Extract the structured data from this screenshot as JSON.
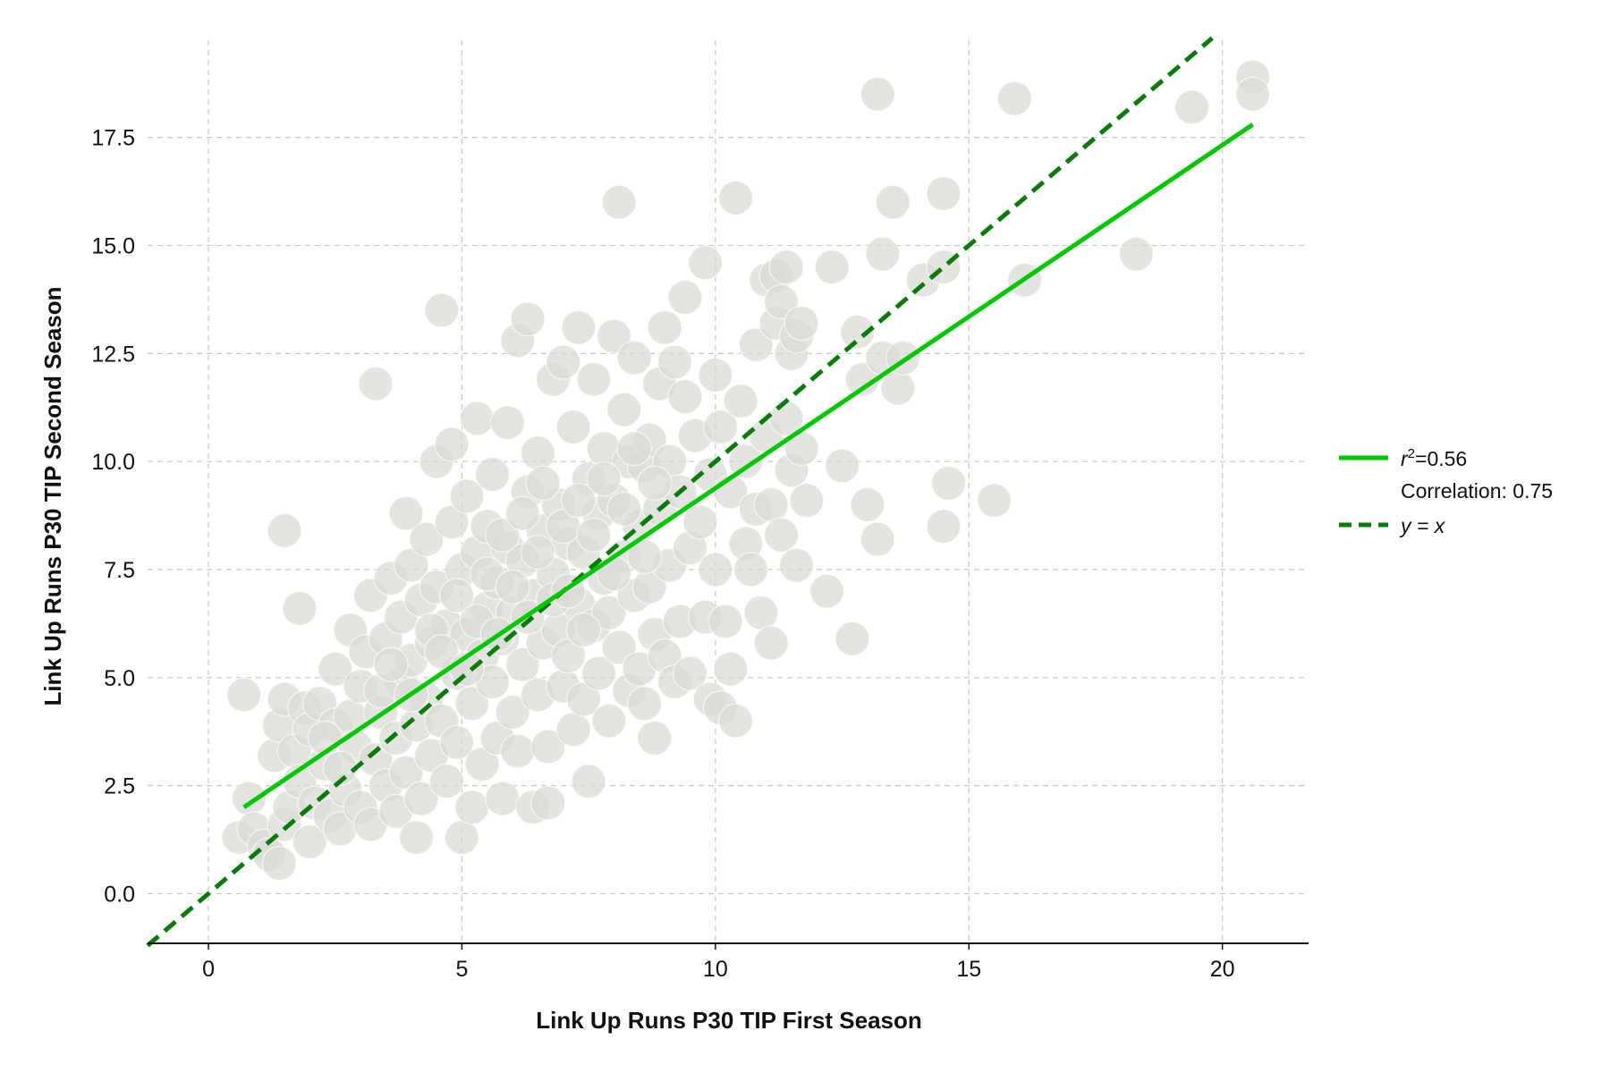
{
  "chart_data": {
    "type": "scatter",
    "title": "",
    "xlabel": "Link Up Runs P30 TIP First Season",
    "ylabel": "Link Up Runs P30 TIP Second Season",
    "xlim": [
      -1.2,
      21.7
    ],
    "ylim": [
      -1.15,
      19.75
    ],
    "xticks": [
      0,
      5,
      10,
      15,
      20
    ],
    "yticks": [
      0.0,
      2.5,
      5.0,
      7.5,
      10.0,
      12.5,
      15.0,
      17.5
    ],
    "xtick_labels": [
      "0",
      "5",
      "10",
      "15",
      "20"
    ],
    "ytick_labels": [
      "0.0",
      "2.5",
      "5.0",
      "7.5",
      "10.0",
      "12.5",
      "15.0",
      "17.5"
    ],
    "grid": true,
    "legend_position": "right",
    "colors": {
      "points": "#d9d9d6",
      "regression": "#00c800",
      "identity": "#0a7a0a"
    },
    "regression": {
      "x": [
        0.7,
        20.6
      ],
      "y": [
        2.0,
        17.8
      ],
      "r2": "0.56",
      "correlation": "0.75"
    },
    "identity": {
      "x": [
        -1.2,
        19.8
      ],
      "y": [
        -1.2,
        19.8
      ]
    },
    "legend": {
      "regression_label": "=0.56",
      "regression_symbol": "r",
      "regression_superscript": "2",
      "correlation_label": "Correlation: 0.75",
      "identity_label": "y = x"
    },
    "series": [
      {
        "values": [
          [
            0.7,
            4.6
          ],
          [
            0.8,
            2.2
          ],
          [
            0.6,
            1.3
          ],
          [
            0.9,
            1.5
          ],
          [
            1.1,
            1.1
          ],
          [
            1.2,
            0.9
          ],
          [
            1.4,
            0.7
          ],
          [
            1.5,
            1.6
          ],
          [
            1.5,
            8.4
          ],
          [
            1.8,
            6.6
          ],
          [
            1.3,
            3.2
          ],
          [
            1.4,
            3.9
          ],
          [
            1.5,
            4.5
          ],
          [
            1.6,
            2.0
          ],
          [
            1.7,
            3.3
          ],
          [
            1.8,
            2.6
          ],
          [
            1.9,
            4.3
          ],
          [
            2.0,
            1.2
          ],
          [
            2.0,
            3.8
          ],
          [
            2.1,
            2.1
          ],
          [
            2.2,
            4.4
          ],
          [
            2.3,
            3.0
          ],
          [
            2.4,
            1.8
          ],
          [
            2.5,
            3.9
          ],
          [
            2.5,
            5.2
          ],
          [
            2.6,
            1.5
          ],
          [
            2.7,
            2.4
          ],
          [
            2.8,
            4.1
          ],
          [
            2.8,
            6.1
          ],
          [
            2.9,
            3.4
          ],
          [
            3.0,
            2.0
          ],
          [
            3.0,
            4.8
          ],
          [
            3.1,
            5.6
          ],
          [
            3.2,
            1.6
          ],
          [
            3.2,
            6.9
          ],
          [
            3.3,
            3.1
          ],
          [
            3.3,
            11.8
          ],
          [
            3.4,
            4.2
          ],
          [
            3.5,
            2.5
          ],
          [
            3.5,
            5.9
          ],
          [
            3.6,
            7.3
          ],
          [
            3.7,
            3.6
          ],
          [
            3.7,
            1.9
          ],
          [
            3.8,
            4.9
          ],
          [
            3.8,
            6.4
          ],
          [
            3.9,
            8.8
          ],
          [
            3.9,
            2.8
          ],
          [
            4.0,
            5.4
          ],
          [
            4.0,
            7.6
          ],
          [
            4.1,
            1.3
          ],
          [
            4.1,
            3.9
          ],
          [
            4.2,
            6.8
          ],
          [
            4.2,
            2.2
          ],
          [
            4.3,
            4.5
          ],
          [
            4.3,
            8.2
          ],
          [
            4.4,
            5.8
          ],
          [
            4.4,
            3.2
          ],
          [
            4.5,
            7.1
          ],
          [
            4.5,
            10.0
          ],
          [
            4.6,
            4.0
          ],
          [
            4.6,
            13.5
          ],
          [
            4.7,
            6.2
          ],
          [
            4.7,
            2.6
          ],
          [
            4.8,
            8.6
          ],
          [
            4.8,
            10.4
          ],
          [
            4.9,
            5.1
          ],
          [
            4.9,
            3.5
          ],
          [
            5.0,
            7.5
          ],
          [
            5.0,
            1.3
          ],
          [
            5.1,
            6.0
          ],
          [
            5.1,
            9.2
          ],
          [
            5.2,
            4.4
          ],
          [
            5.2,
            2.0
          ],
          [
            5.3,
            11.0
          ],
          [
            5.3,
            7.9
          ],
          [
            5.4,
            5.5
          ],
          [
            5.4,
            3.0
          ],
          [
            5.5,
            8.5
          ],
          [
            5.5,
            6.6
          ],
          [
            5.6,
            4.9
          ],
          [
            5.6,
            9.7
          ],
          [
            5.7,
            3.6
          ],
          [
            5.7,
            7.2
          ],
          [
            5.8,
            5.9
          ],
          [
            5.8,
            2.2
          ],
          [
            5.9,
            10.9
          ],
          [
            5.9,
            8.0
          ],
          [
            6.0,
            4.2
          ],
          [
            6.0,
            6.5
          ],
          [
            6.1,
            12.8
          ],
          [
            6.1,
            3.3
          ],
          [
            6.2,
            7.7
          ],
          [
            6.2,
            5.3
          ],
          [
            6.3,
            9.3
          ],
          [
            6.3,
            13.3
          ],
          [
            6.4,
            2.0
          ],
          [
            6.4,
            6.9
          ],
          [
            6.5,
            4.6
          ],
          [
            6.5,
            10.2
          ],
          [
            6.6,
            8.4
          ],
          [
            6.6,
            5.8
          ],
          [
            6.7,
            3.4
          ],
          [
            6.7,
            2.1
          ],
          [
            6.8,
            7.4
          ],
          [
            6.8,
            11.9
          ],
          [
            6.9,
            6.1
          ],
          [
            6.9,
            9.0
          ],
          [
            7.0,
            4.8
          ],
          [
            7.0,
            12.3
          ],
          [
            7.1,
            8.1
          ],
          [
            7.1,
            5.5
          ],
          [
            7.2,
            3.8
          ],
          [
            7.2,
            10.8
          ],
          [
            7.3,
            6.7
          ],
          [
            7.3,
            13.1
          ],
          [
            7.4,
            7.9
          ],
          [
            7.4,
            4.5
          ],
          [
            7.5,
            9.6
          ],
          [
            7.5,
            2.6
          ],
          [
            7.6,
            6.2
          ],
          [
            7.6,
            11.9
          ],
          [
            7.7,
            8.8
          ],
          [
            7.7,
            5.1
          ],
          [
            7.8,
            10.3
          ],
          [
            7.8,
            7.3
          ],
          [
            7.9,
            4.0
          ],
          [
            7.9,
            6.5
          ],
          [
            8.0,
            9.1
          ],
          [
            8.0,
            12.9
          ],
          [
            8.1,
            5.7
          ],
          [
            8.1,
            16.0
          ],
          [
            8.2,
            7.8
          ],
          [
            8.2,
            11.2
          ],
          [
            8.3,
            4.7
          ],
          [
            8.3,
            10.0
          ],
          [
            8.4,
            6.9
          ],
          [
            8.4,
            12.4
          ],
          [
            8.5,
            8.5
          ],
          [
            8.5,
            5.2
          ],
          [
            8.6,
            9.9
          ],
          [
            8.6,
            4.4
          ],
          [
            8.7,
            7.1
          ],
          [
            8.7,
            10.5
          ],
          [
            8.8,
            3.6
          ],
          [
            8.8,
            6.0
          ],
          [
            8.9,
            8.9
          ],
          [
            8.9,
            11.8
          ],
          [
            9.0,
            13.1
          ],
          [
            9.0,
            5.5
          ],
          [
            9.1,
            10.0
          ],
          [
            9.1,
            7.6
          ],
          [
            9.2,
            12.3
          ],
          [
            9.2,
            4.9
          ],
          [
            9.3,
            9.3
          ],
          [
            9.3,
            6.3
          ],
          [
            9.4,
            13.8
          ],
          [
            9.4,
            11.5
          ],
          [
            9.5,
            8.0
          ],
          [
            9.5,
            5.1
          ],
          [
            9.6,
            10.6
          ],
          [
            9.7,
            8.6
          ],
          [
            9.8,
            14.6
          ],
          [
            9.8,
            6.4
          ],
          [
            9.9,
            4.5
          ],
          [
            9.9,
            9.7
          ],
          [
            10.0,
            12.0
          ],
          [
            10.0,
            7.5
          ],
          [
            10.1,
            4.3
          ],
          [
            10.1,
            10.8
          ],
          [
            10.2,
            6.3
          ],
          [
            10.3,
            5.2
          ],
          [
            10.3,
            9.3
          ],
          [
            10.4,
            16.1
          ],
          [
            10.4,
            4.0
          ],
          [
            10.5,
            11.4
          ],
          [
            10.6,
            8.1
          ],
          [
            10.6,
            10.0
          ],
          [
            10.7,
            7.5
          ],
          [
            10.8,
            12.7
          ],
          [
            10.8,
            8.9
          ],
          [
            10.9,
            6.5
          ],
          [
            11.0,
            10.6
          ],
          [
            11.0,
            14.2
          ],
          [
            11.1,
            9.0
          ],
          [
            11.1,
            5.8
          ],
          [
            11.2,
            13.2
          ],
          [
            11.2,
            14.3
          ],
          [
            11.3,
            8.3
          ],
          [
            11.3,
            13.7
          ],
          [
            11.4,
            14.5
          ],
          [
            11.4,
            11.0
          ],
          [
            11.5,
            12.5
          ],
          [
            11.5,
            9.8
          ],
          [
            11.6,
            12.9
          ],
          [
            11.6,
            7.6
          ],
          [
            11.7,
            13.2
          ],
          [
            11.7,
            10.3
          ],
          [
            11.8,
            9.1
          ],
          [
            12.3,
            14.5
          ],
          [
            12.2,
            7.0
          ],
          [
            12.5,
            9.9
          ],
          [
            12.7,
            5.9
          ],
          [
            12.8,
            13.0
          ],
          [
            12.9,
            11.9
          ],
          [
            13.0,
            9.0
          ],
          [
            13.2,
            18.5
          ],
          [
            13.2,
            8.2
          ],
          [
            13.3,
            14.8
          ],
          [
            13.3,
            12.4
          ],
          [
            13.5,
            16.0
          ],
          [
            13.6,
            11.7
          ],
          [
            13.7,
            12.4
          ],
          [
            14.1,
            14.2
          ],
          [
            14.5,
            16.2
          ],
          [
            14.5,
            14.5
          ],
          [
            14.6,
            9.5
          ],
          [
            14.5,
            8.5
          ],
          [
            15.5,
            9.1
          ],
          [
            15.9,
            18.4
          ],
          [
            16.1,
            14.2
          ],
          [
            18.3,
            14.8
          ],
          [
            19.4,
            18.2
          ],
          [
            20.6,
            18.9
          ],
          [
            20.6,
            18.5
          ],
          [
            2.3,
            3.6
          ],
          [
            2.6,
            2.9
          ],
          [
            3.4,
            4.7
          ],
          [
            3.6,
            5.3
          ],
          [
            4.0,
            4.6
          ],
          [
            4.4,
            6.1
          ],
          [
            4.6,
            5.6
          ],
          [
            4.9,
            6.9
          ],
          [
            5.1,
            5.2
          ],
          [
            5.3,
            6.3
          ],
          [
            5.5,
            7.4
          ],
          [
            5.7,
            6.0
          ],
          [
            5.8,
            8.3
          ],
          [
            6.0,
            7.1
          ],
          [
            6.2,
            8.8
          ],
          [
            6.3,
            6.4
          ],
          [
            6.5,
            7.9
          ],
          [
            6.6,
            9.5
          ],
          [
            6.8,
            6.8
          ],
          [
            7.0,
            8.5
          ],
          [
            7.1,
            7.0
          ],
          [
            7.3,
            9.1
          ],
          [
            7.4,
            6.1
          ],
          [
            7.6,
            8.3
          ],
          [
            7.8,
            9.6
          ],
          [
            8.0,
            7.4
          ],
          [
            8.2,
            8.9
          ],
          [
            8.4,
            10.3
          ],
          [
            8.6,
            7.8
          ],
          [
            8.8,
            9.5
          ]
        ]
      }
    ]
  }
}
